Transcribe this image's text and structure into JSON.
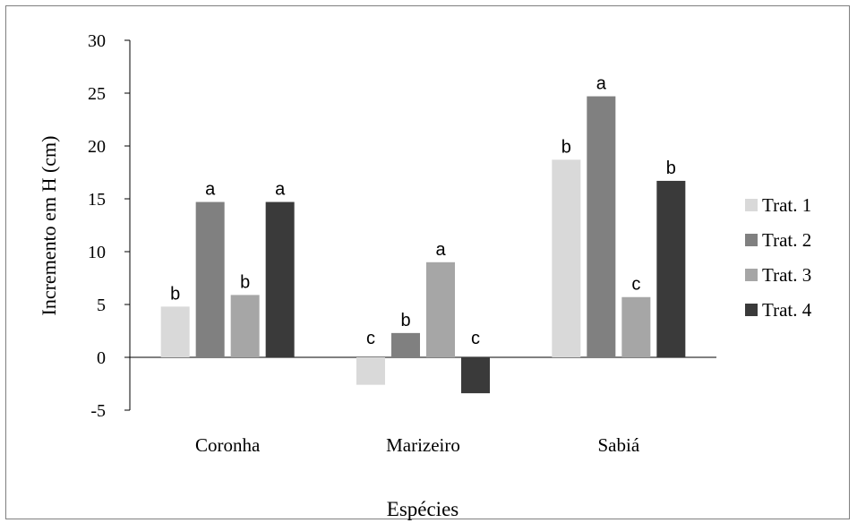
{
  "chart_data": {
    "type": "bar",
    "title": "",
    "xlabel": "Espécies",
    "ylabel": "Incremento em H (cm)",
    "ylim": [
      -5,
      30
    ],
    "yticks": [
      30,
      25,
      20,
      15,
      10,
      5,
      0,
      -5
    ],
    "grid": false,
    "legend_position": "right",
    "categories": [
      "Coronha",
      "Marizeiro",
      "Sabiá"
    ],
    "series": [
      {
        "name": "Trat. 1",
        "color": "#d9d9d9",
        "values": [
          4.8,
          -2.6,
          18.7
        ],
        "labels": [
          "b",
          "c",
          "b"
        ]
      },
      {
        "name": "Trat. 2",
        "color": "#808080",
        "values": [
          14.7,
          2.3,
          24.7
        ],
        "labels": [
          "a",
          "b",
          "a"
        ]
      },
      {
        "name": "Trat. 3",
        "color": "#a6a6a6",
        "values": [
          5.9,
          9.0,
          5.7
        ],
        "labels": [
          "b",
          "a",
          "c"
        ]
      },
      {
        "name": "Trat. 4",
        "color": "#3a3a3a",
        "values": [
          14.7,
          -3.4,
          16.7
        ],
        "labels": [
          "a",
          "c",
          "b"
        ]
      }
    ]
  }
}
